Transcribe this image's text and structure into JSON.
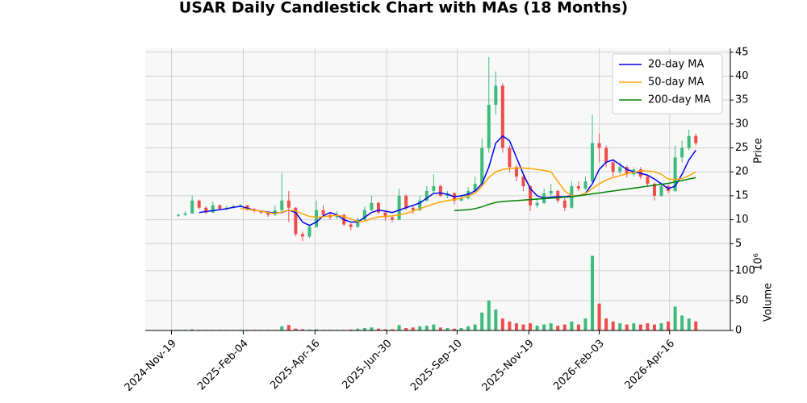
{
  "chart_data": {
    "type": "candlestick",
    "title": "USAR Daily Candlestick Chart with MAs (18 Months)",
    "x": [
      5,
      10,
      15,
      20,
      25,
      30,
      35,
      40,
      45,
      50,
      55,
      60,
      65,
      70,
      75,
      80,
      85,
      90,
      95,
      100,
      105,
      110,
      115,
      120,
      125,
      130,
      135,
      140,
      145,
      150,
      155,
      160,
      165,
      170,
      175,
      180,
      185,
      190,
      195,
      200,
      205,
      210,
      215,
      220,
      225,
      230,
      235,
      240,
      245,
      250,
      255,
      260,
      265,
      270,
      275,
      280,
      285,
      290,
      295,
      300,
      305,
      310,
      315,
      320,
      325,
      330,
      335,
      340,
      345,
      350,
      355,
      360,
      365,
      370,
      375,
      380
    ],
    "xlim": [
      -19,
      405
    ],
    "xticks": [
      {
        "value": 0,
        "label": "2024-Nov-19"
      },
      {
        "value": 52,
        "label": "2025-Feb-04"
      },
      {
        "value": 104,
        "label": "2025-Apr-16"
      },
      {
        "value": 156,
        "label": "2025-Jun-30"
      },
      {
        "value": 207,
        "label": "2025-Sep-10"
      },
      {
        "value": 259,
        "label": "2025-Nov-19"
      },
      {
        "value": 310,
        "label": "2026-Feb-03"
      },
      {
        "value": 361,
        "label": "2026-Apr-16"
      }
    ],
    "ohlc": [
      [
        10.8,
        11.3,
        10.6,
        11
      ],
      [
        11,
        11.8,
        10.8,
        11.3
      ],
      [
        11.3,
        15,
        11.2,
        14
      ],
      [
        14,
        14.2,
        12.2,
        12.5
      ],
      [
        12.5,
        12.8,
        11.2,
        11.5
      ],
      [
        11.5,
        13.8,
        11.4,
        13
      ],
      [
        13,
        13.2,
        12,
        12.3
      ],
      [
        12.3,
        12.9,
        12,
        12.5
      ],
      [
        12.5,
        13.1,
        12.3,
        12.8
      ],
      [
        12.8,
        13.4,
        12.6,
        13
      ],
      [
        13,
        13.1,
        11.9,
        12.2
      ],
      [
        12.2,
        12.4,
        11.5,
        11.8
      ],
      [
        11.8,
        12,
        11.2,
        11.5
      ],
      [
        11.5,
        11.7,
        10.6,
        11
      ],
      [
        11,
        13,
        10.8,
        12
      ],
      [
        12,
        19.8,
        11.5,
        14
      ],
      [
        14,
        16,
        9.5,
        12.5
      ],
      [
        12.5,
        12.6,
        6.5,
        7
      ],
      [
        7,
        7.5,
        5.5,
        6.5
      ],
      [
        6.5,
        9,
        6.2,
        8.5
      ],
      [
        8.5,
        14,
        8.3,
        12
      ],
      [
        12,
        13,
        10.5,
        11
      ],
      [
        11,
        11.5,
        10,
        10.5
      ],
      [
        10.5,
        11.8,
        10.2,
        11
      ],
      [
        11,
        11.2,
        8.7,
        9
      ],
      [
        9,
        9.3,
        7.8,
        8.5
      ],
      [
        8.5,
        10.5,
        8.3,
        10
      ],
      [
        10,
        12.8,
        9.8,
        12
      ],
      [
        12,
        15,
        11.8,
        13.5
      ],
      [
        13.5,
        13.8,
        11.2,
        11.5
      ],
      [
        11.5,
        11.8,
        9.8,
        10.5
      ],
      [
        10.5,
        10.8,
        9.5,
        10
      ],
      [
        10,
        16.5,
        9.9,
        15
      ],
      [
        15,
        15.3,
        12,
        12.5
      ],
      [
        12.5,
        13,
        11.2,
        12
      ],
      [
        12,
        15,
        11.8,
        14
      ],
      [
        14,
        17,
        13.8,
        16
      ],
      [
        16,
        19.5,
        15.5,
        17
      ],
      [
        17,
        17.3,
        14.7,
        15
      ],
      [
        15,
        16,
        14.5,
        15.5
      ],
      [
        15.5,
        15.8,
        13.2,
        14
      ],
      [
        14,
        15,
        13.8,
        14.5
      ],
      [
        14.5,
        16.8,
        14.2,
        16
      ],
      [
        16,
        19,
        15.8,
        17.5
      ],
      [
        17.5,
        27,
        17.3,
        25
      ],
      [
        25,
        44,
        24,
        34
      ],
      [
        34,
        41,
        32,
        38
      ],
      [
        38,
        38.5,
        24,
        25
      ],
      [
        25,
        25.5,
        20,
        21
      ],
      [
        21,
        21.5,
        18,
        19
      ],
      [
        19,
        19.5,
        16,
        17
      ],
      [
        17,
        17.2,
        11.8,
        13
      ],
      [
        13,
        14.5,
        12.5,
        13.5
      ],
      [
        13.5,
        16.5,
        13.2,
        15.5
      ],
      [
        15.5,
        17.5,
        15,
        16
      ],
      [
        16,
        16.3,
        13.5,
        14
      ],
      [
        14,
        14.5,
        11.8,
        12.5
      ],
      [
        12.5,
        18,
        12.3,
        17
      ],
      [
        17,
        18,
        16,
        16.5
      ],
      [
        16.5,
        19,
        16.2,
        18
      ],
      [
        18,
        32,
        17.5,
        26
      ],
      [
        26,
        28,
        22,
        25
      ],
      [
        25,
        25.5,
        21,
        22
      ],
      [
        22,
        22.3,
        19,
        20
      ],
      [
        20,
        22,
        19.5,
        21
      ],
      [
        21,
        21.3,
        18.8,
        19.5
      ],
      [
        19.5,
        21,
        19,
        20.5
      ],
      [
        20.5,
        21,
        18.5,
        19
      ],
      [
        19,
        19.3,
        17,
        17.5
      ],
      [
        17.5,
        17.8,
        14,
        15
      ],
      [
        15,
        17.5,
        14.8,
        17
      ],
      [
        17,
        17.3,
        15.5,
        16
      ],
      [
        16,
        25.5,
        15.8,
        23
      ],
      [
        23,
        26.5,
        22,
        25
      ],
      [
        25,
        28.8,
        24.5,
        27.5
      ],
      [
        27.5,
        28,
        25.5,
        26
      ]
    ],
    "ylim": [
      3.7,
      45.8
    ],
    "yticks": [
      5,
      10,
      15,
      20,
      25,
      30,
      35,
      40,
      45
    ],
    "ylabel": "Price",
    "up_color": "#3dbb7c",
    "down_color": "#ef4d4d",
    "grid": true,
    "legend": "upper right",
    "series": [
      {
        "name": "20-day MA",
        "color": "#0000ee",
        "values": [
          null,
          null,
          null,
          11.5,
          11.7,
          11.9,
          12.1,
          12.3,
          12.6,
          12.8,
          12.4,
          12,
          11.8,
          11.6,
          11.4,
          11.5,
          12,
          11.5,
          9.5,
          8.8,
          9.5,
          10.8,
          11.5,
          11,
          10,
          9.5,
          9.5,
          10.5,
          11.5,
          12,
          11.8,
          11.5,
          12,
          12.5,
          13,
          13.5,
          14.5,
          15.5,
          15.6,
          15.3,
          14.8,
          15,
          15.3,
          16,
          17.5,
          21,
          26,
          27.5,
          26.5,
          23,
          19.5,
          16.5,
          15,
          14.5,
          14.7,
          14.8,
          14.8,
          15,
          15,
          15.5,
          17.5,
          20.5,
          22,
          22.5,
          21.5,
          20.5,
          20,
          19.7,
          19.3,
          18.5,
          17.5,
          16.5,
          17,
          19.5,
          22.5,
          24.5
        ]
      },
      {
        "name": "50-day MA",
        "color": "#ffa500",
        "values": [
          null,
          null,
          null,
          null,
          null,
          null,
          null,
          null,
          null,
          12.3,
          12.2,
          12,
          11.8,
          11.5,
          11.3,
          11.6,
          12,
          11.8,
          11.2,
          10.7,
          10.5,
          10.6,
          10.8,
          10.9,
          10.7,
          10.2,
          9.6,
          9.7,
          10.2,
          10.6,
          10.7,
          10.8,
          11,
          11.3,
          11.8,
          12.3,
          12.8,
          13.3,
          13.7,
          14,
          14.2,
          14.5,
          15,
          15.5,
          17,
          18.8,
          20,
          20.5,
          20.7,
          20.8,
          20.8,
          20.7,
          20.5,
          20.3,
          20,
          18,
          16,
          15,
          15,
          15.5,
          16.5,
          17.5,
          18.3,
          18.8,
          19.2,
          19.6,
          19.9,
          20.2,
          20.2,
          20,
          19.5,
          18.5,
          18.4,
          18.6,
          19.2,
          20
        ]
      },
      {
        "name": "200-day MA",
        "color": "#008000",
        "values": [
          null,
          null,
          null,
          null,
          null,
          null,
          null,
          null,
          null,
          null,
          null,
          null,
          null,
          null,
          null,
          null,
          null,
          null,
          null,
          null,
          null,
          null,
          null,
          null,
          null,
          null,
          null,
          null,
          null,
          null,
          null,
          null,
          null,
          null,
          null,
          null,
          null,
          null,
          null,
          null,
          11.9,
          12,
          12.1,
          12.3,
          12.7,
          13.2,
          13.6,
          13.8,
          13.9,
          14,
          14.1,
          14.2,
          14.3,
          14.4,
          14.5,
          14.6,
          14.7,
          14.8,
          15,
          15.2,
          15.4,
          15.6,
          15.8,
          16,
          16.2,
          16.4,
          16.6,
          16.8,
          17,
          17.2,
          17.4,
          17.6,
          17.9,
          18.2,
          18.5,
          18.8
        ]
      }
    ],
    "volume": {
      "values": [
        1,
        1,
        2,
        1,
        1,
        1,
        1,
        1,
        1,
        1,
        1,
        1,
        1,
        1,
        1,
        7,
        9,
        3,
        2,
        1.5,
        2,
        1,
        1,
        1,
        1,
        1.5,
        3,
        4,
        5,
        3,
        2,
        2,
        9,
        4,
        5,
        7,
        8,
        10,
        5,
        4,
        3,
        4,
        7,
        10,
        30,
        50,
        35,
        20,
        15,
        12,
        10,
        12,
        8,
        10,
        12,
        8,
        10,
        15,
        10,
        20,
        125,
        45,
        20,
        15,
        12,
        10,
        12,
        10,
        12,
        10,
        12,
        15,
        40,
        25,
        20,
        15
      ],
      "ylim": [
        0,
        135
      ],
      "yticks": [
        0,
        50,
        100
      ],
      "ylabel": "Volume",
      "offset_label": "10⁶"
    }
  }
}
